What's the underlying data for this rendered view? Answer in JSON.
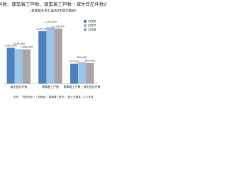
{
  "chart_data": {
    "type": "bar",
    "title": "登記件数、建築着工戸数、建築着工戸数－滅失登記件数の推移",
    "subtitle": "（各数値を含む過去8年間の数値）",
    "categories": [
      "滅失登記件数",
      "建築着工戸数",
      "建築着工戸数－滅失登記件数"
    ],
    "series": [
      {
        "name": "2006",
        "color": "#4f81bd",
        "values": [
          1429000,
          2091000,
          797000
        ],
        "value_labels": [
          "1,429,000",
          "2,091,000",
          "797,000"
        ]
      },
      {
        "name": "2007",
        "color": "#9dc3e6",
        "values": [
          1379000,
          2255000,
          852000
        ],
        "value_labels": [
          "1,379,000",
          "2,255,000",
          "852,000"
        ]
      },
      {
        "name": "2008",
        "color": "#a6a6a6",
        "values": [
          1366000,
          2193000,
          820000
        ],
        "value_labels": [
          "1,366,000",
          "2,193,000",
          "820,000"
        ]
      }
    ],
    "ylim": [
      0,
      2600000
    ],
    "legend": "top-right",
    "note": "出所：「登記統計」（法務省）「建築着工統計」（国土交通省）より作成"
  }
}
